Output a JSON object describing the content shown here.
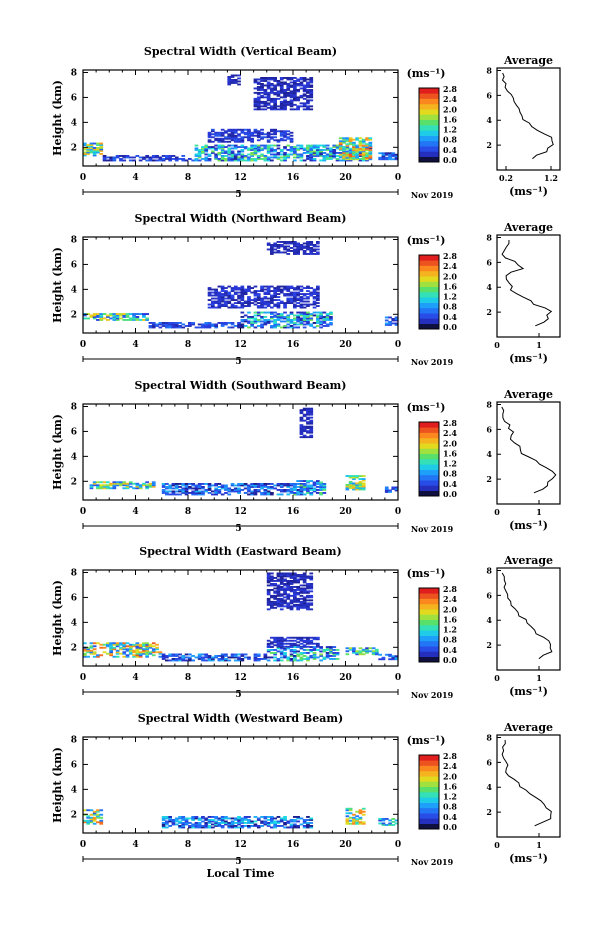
{
  "figure": {
    "shared_xlabel": "Local Time",
    "date_day": "5",
    "date_label": "Nov 2019",
    "colorbar_units": "(ms⁻¹)",
    "avg_title": "Average",
    "avg_xlabel": "(ms⁻¹)"
  },
  "chart_data": [
    {
      "type": "heatmap",
      "title": "Spectral Width (Vertical Beam)",
      "ylabel": "Height (km)",
      "xlabel": "Local Time",
      "x_ticks": [
        "0",
        "4",
        "8",
        "12",
        "16",
        "20",
        "0"
      ],
      "y_ticks": [
        "2",
        "4",
        "6",
        "8"
      ],
      "xlim": [
        0,
        24
      ],
      "ylim": [
        0.5,
        8.2
      ],
      "colorbar": {
        "label": "(ms⁻¹)",
        "ticks": [
          "0.0",
          "0.4",
          "0.8",
          "1.2",
          "1.6",
          "2.0",
          "2.4",
          "2.8"
        ],
        "range": [
          0,
          2.8
        ]
      },
      "average_profile": {
        "title": "Average",
        "xlabel": "(ms⁻¹)",
        "x_ticks": [
          "0.2",
          "1.2"
        ],
        "xlim": [
          0,
          1.4
        ],
        "width": [
          0.1,
          0.15,
          0.2,
          0.3,
          0.4,
          0.5,
          0.55,
          0.7,
          0.9,
          1.2,
          1.25,
          1.1,
          0.8
        ]
      },
      "regions": [
        {
          "x": [
            0.0,
            1.5
          ],
          "y": [
            1.3,
            2.3
          ],
          "w": 1.4,
          "var": 0.9
        },
        {
          "x": [
            1.5,
            8.5
          ],
          "y": [
            0.9,
            1.3
          ],
          "w": 0.3,
          "var": 0.3
        },
        {
          "x": [
            8.5,
            22.0
          ],
          "y": [
            0.9,
            2.2
          ],
          "w": 0.9,
          "var": 0.8
        },
        {
          "x": [
            9.5,
            16.0
          ],
          "y": [
            2.4,
            3.4
          ],
          "w": 0.3,
          "var": 0.2
        },
        {
          "x": [
            13.0,
            17.5
          ],
          "y": [
            5.0,
            7.6
          ],
          "w": 0.2,
          "var": 0.15
        },
        {
          "x": [
            11.0,
            12.0
          ],
          "y": [
            7.0,
            7.8
          ],
          "w": 0.2,
          "var": 0.1
        },
        {
          "x": [
            19.5,
            22.0
          ],
          "y": [
            1.0,
            2.7
          ],
          "w": 1.6,
          "var": 1.0
        },
        {
          "x": [
            22.5,
            24.0
          ],
          "y": [
            1.0,
            1.6
          ],
          "w": 0.5,
          "var": 0.4
        }
      ]
    },
    {
      "type": "heatmap",
      "title": "Spectral Width (Northward Beam)",
      "ylabel": "Height (km)",
      "xlabel": "Local Time",
      "x_ticks": [
        "0",
        "4",
        "8",
        "12",
        "16",
        "20",
        "0"
      ],
      "y_ticks": [
        "2",
        "4",
        "6",
        "8"
      ],
      "xlim": [
        0,
        24
      ],
      "ylim": [
        0.5,
        8.2
      ],
      "colorbar": {
        "label": "(ms⁻¹)",
        "ticks": [
          "0.0",
          "0.4",
          "0.8",
          "1.2",
          "1.6",
          "2.0",
          "2.4",
          "2.8"
        ],
        "range": [
          0,
          2.8
        ]
      },
      "average_profile": {
        "title": "Average",
        "xlabel": "(ms⁻¹)",
        "x_ticks": [
          "0",
          "1"
        ],
        "xlim": [
          0,
          1.5
        ],
        "width": [
          0.3,
          0.2,
          0.15,
          0.4,
          0.6,
          0.2,
          0.3,
          0.35,
          0.6,
          0.9,
          1.3,
          1.2,
          0.9
        ]
      },
      "regions": [
        {
          "x": [
            0.0,
            5.0
          ],
          "y": [
            1.5,
            2.1
          ],
          "w": 1.2,
          "var": 0.9
        },
        {
          "x": [
            5.0,
            12.0
          ],
          "y": [
            0.9,
            1.3
          ],
          "w": 0.4,
          "var": 0.3
        },
        {
          "x": [
            12.0,
            19.0
          ],
          "y": [
            0.9,
            2.2
          ],
          "w": 0.8,
          "var": 0.8
        },
        {
          "x": [
            9.5,
            18.0
          ],
          "y": [
            2.5,
            4.2
          ],
          "w": 0.25,
          "var": 0.15
        },
        {
          "x": [
            14.0,
            18.0
          ],
          "y": [
            6.8,
            7.8
          ],
          "w": 0.2,
          "var": 0.1
        },
        {
          "x": [
            23.0,
            24.0
          ],
          "y": [
            1.1,
            1.8
          ],
          "w": 0.6,
          "var": 0.5
        }
      ]
    },
    {
      "type": "heatmap",
      "title": "Spectral Width (Southward Beam)",
      "ylabel": "Height (km)",
      "xlabel": "Local Time",
      "x_ticks": [
        "0",
        "4",
        "8",
        "12",
        "16",
        "20",
        "0"
      ],
      "y_ticks": [
        "2",
        "4",
        "6",
        "8"
      ],
      "xlim": [
        0,
        24
      ],
      "ylim": [
        0.5,
        8.2
      ],
      "colorbar": {
        "label": "(ms⁻¹)",
        "ticks": [
          "0.0",
          "0.4",
          "0.8",
          "1.2",
          "1.6",
          "2.0",
          "2.4",
          "2.8"
        ],
        "range": [
          0,
          2.8
        ]
      },
      "average_profile": {
        "title": "Average",
        "xlabel": "(ms⁻¹)",
        "x_ticks": [
          "0",
          "1"
        ],
        "xlim": [
          0,
          1.5
        ],
        "width": [
          0.1,
          0.15,
          0.2,
          0.3,
          0.35,
          0.4,
          0.55,
          0.75,
          1.0,
          1.3,
          1.35,
          1.2,
          0.9
        ]
      },
      "regions": [
        {
          "x": [
            0.5,
            5.5
          ],
          "y": [
            1.4,
            1.9
          ],
          "w": 1.3,
          "var": 0.9
        },
        {
          "x": [
            6.0,
            17.5
          ],
          "y": [
            0.9,
            1.8
          ],
          "w": 0.5,
          "var": 0.5
        },
        {
          "x": [
            16.0,
            18.5
          ],
          "y": [
            0.9,
            2.0
          ],
          "w": 0.9,
          "var": 0.7
        },
        {
          "x": [
            16.5,
            17.5
          ],
          "y": [
            5.5,
            7.8
          ],
          "w": 0.2,
          "var": 0.1
        },
        {
          "x": [
            20.0,
            21.5
          ],
          "y": [
            1.3,
            2.4
          ],
          "w": 1.4,
          "var": 0.8
        },
        {
          "x": [
            23.0,
            24.0
          ],
          "y": [
            1.1,
            1.5
          ],
          "w": 0.5,
          "var": 0.4
        }
      ]
    },
    {
      "type": "heatmap",
      "title": "Spectral Width (Eastward Beam)",
      "ylabel": "Height (km)",
      "xlabel": "Local Time",
      "x_ticks": [
        "0",
        "4",
        "8",
        "12",
        "16",
        "20",
        "0"
      ],
      "y_ticks": [
        "2",
        "4",
        "6",
        "8"
      ],
      "xlim": [
        0,
        24
      ],
      "ylim": [
        0.5,
        8.2
      ],
      "colorbar": {
        "label": "(ms⁻¹)",
        "ticks": [
          "0.0",
          "0.4",
          "0.8",
          "1.2",
          "1.6",
          "2.0",
          "2.4",
          "2.8"
        ],
        "range": [
          0,
          2.8
        ]
      },
      "average_profile": {
        "title": "Average",
        "xlabel": "(ms⁻¹)",
        "x_ticks": [
          "0",
          "1"
        ],
        "xlim": [
          0,
          1.5
        ],
        "width": [
          0.1,
          0.15,
          0.2,
          0.25,
          0.35,
          0.45,
          0.55,
          0.7,
          0.9,
          1.1,
          1.3,
          1.3,
          1.0
        ]
      },
      "regions": [
        {
          "x": [
            0.0,
            6.0
          ],
          "y": [
            1.2,
            2.3
          ],
          "w": 1.5,
          "var": 1.1
        },
        {
          "x": [
            6.0,
            14.0
          ],
          "y": [
            0.9,
            1.5
          ],
          "w": 0.5,
          "var": 0.5
        },
        {
          "x": [
            14.0,
            19.5
          ],
          "y": [
            0.9,
            2.0
          ],
          "w": 0.9,
          "var": 0.8
        },
        {
          "x": [
            14.0,
            18.0
          ],
          "y": [
            2.0,
            2.8
          ],
          "w": 0.25,
          "var": 0.15
        },
        {
          "x": [
            14.0,
            17.5
          ],
          "y": [
            5.0,
            8.0
          ],
          "w": 0.2,
          "var": 0.15
        },
        {
          "x": [
            20.0,
            22.5
          ],
          "y": [
            1.4,
            2.0
          ],
          "w": 1.0,
          "var": 0.8
        },
        {
          "x": [
            22.5,
            24.0
          ],
          "y": [
            1.0,
            1.4
          ],
          "w": 0.5,
          "var": 0.4
        }
      ]
    },
    {
      "type": "heatmap",
      "title": "Spectral Width (Westward Beam)",
      "ylabel": "Height (km)",
      "xlabel": "Local Time",
      "x_ticks": [
        "0",
        "4",
        "8",
        "12",
        "16",
        "20",
        "0"
      ],
      "y_ticks": [
        "2",
        "4",
        "6",
        "8"
      ],
      "xlim": [
        0,
        24
      ],
      "ylim": [
        0.5,
        8.2
      ],
      "colorbar": {
        "label": "(ms⁻¹)",
        "ticks": [
          "0.0",
          "0.4",
          "0.8",
          "1.2",
          "1.6",
          "2.0",
          "2.4",
          "2.8"
        ],
        "range": [
          0,
          2.8
        ]
      },
      "average_profile": {
        "title": "Average",
        "xlabel": "(ms⁻¹)",
        "x_ticks": [
          "0",
          "1"
        ],
        "xlim": [
          0,
          1.5
        ],
        "width": [
          0.2,
          0.15,
          0.1,
          0.2,
          0.2,
          0.3,
          0.5,
          0.7,
          0.9,
          1.1,
          1.3,
          1.3,
          0.9
        ]
      },
      "regions": [
        {
          "x": [
            0.0,
            1.5
          ],
          "y": [
            1.2,
            2.3
          ],
          "w": 1.5,
          "var": 1.0
        },
        {
          "x": [
            6.0,
            17.5
          ],
          "y": [
            0.9,
            1.8
          ],
          "w": 0.6,
          "var": 0.6
        },
        {
          "x": [
            20.0,
            21.5
          ],
          "y": [
            1.2,
            2.5
          ],
          "w": 1.5,
          "var": 0.9
        },
        {
          "x": [
            22.5,
            24.0
          ],
          "y": [
            1.1,
            1.7
          ],
          "w": 0.9,
          "var": 0.7
        }
      ]
    }
  ]
}
